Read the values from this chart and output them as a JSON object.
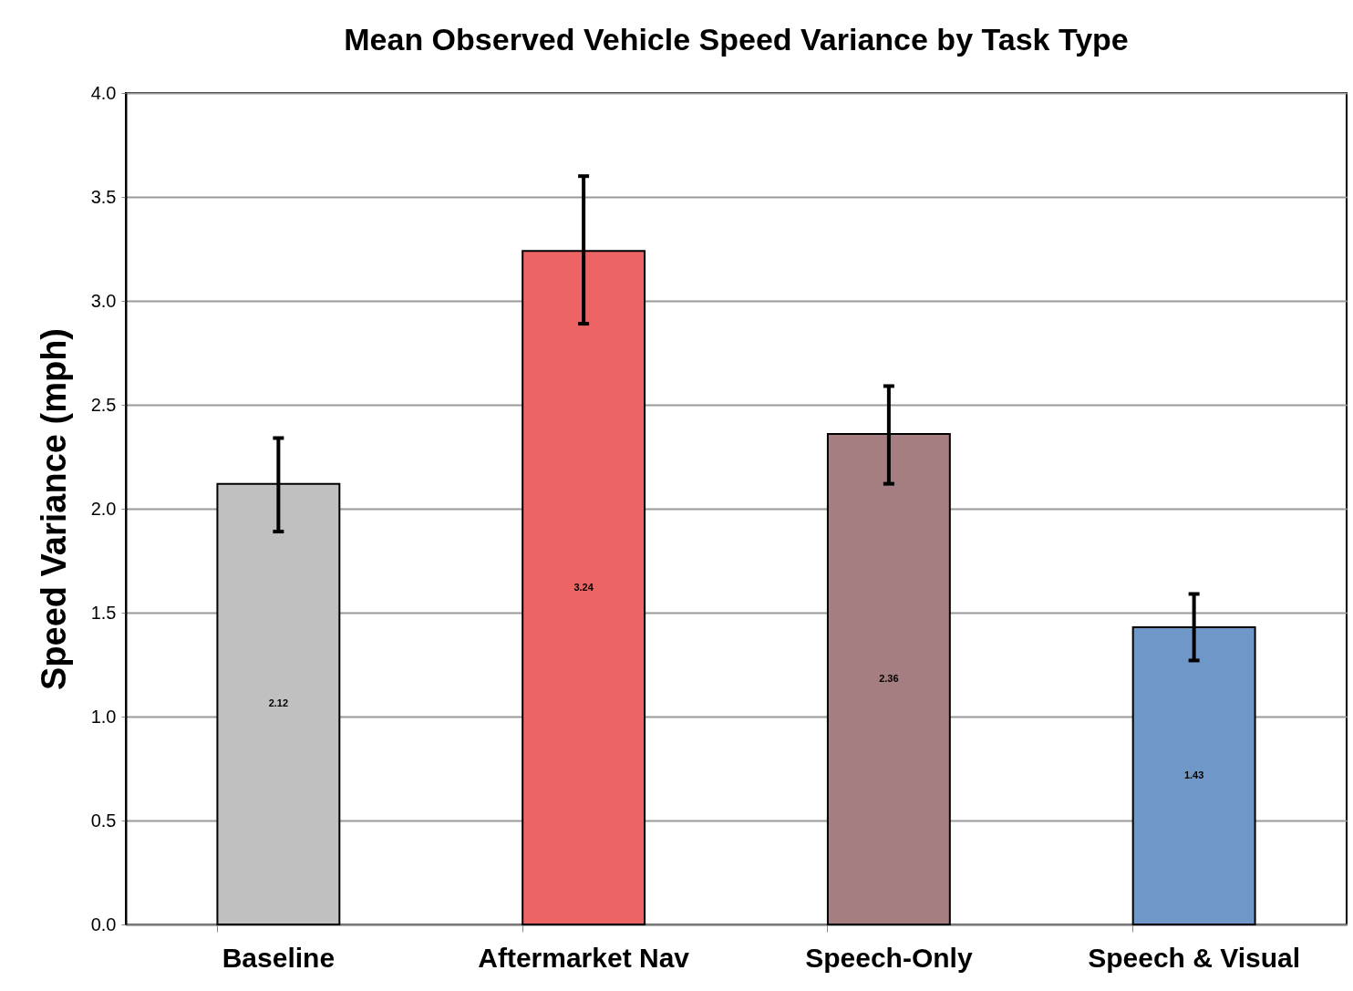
{
  "chart_data": {
    "type": "bar",
    "title": "Mean Observed Vehicle Speed Variance by Task Type",
    "ylabel": "Speed Variance (mph)",
    "categories": [
      "Baseline",
      "Aftermarket Nav",
      "Speech-Only",
      "Speech & Visual"
    ],
    "values": [
      2.12,
      3.24,
      2.36,
      1.43
    ],
    "colors": [
      "#c0c0c0",
      "#ec6464",
      "#a47e80",
      "#6f98c8"
    ],
    "errors": [
      [
        1.89,
        2.34
      ],
      [
        2.89,
        3.6
      ],
      [
        2.12,
        2.59
      ],
      [
        1.27,
        1.59
      ]
    ],
    "data_labels": true,
    "ylim": [
      0,
      4
    ],
    "yticks": [
      {
        "value": 0,
        "label": "0.0"
      },
      {
        "value": 0.5,
        "label": "0.5"
      },
      {
        "value": 1,
        "label": "1.0"
      },
      {
        "value": 1.5,
        "label": "1.5"
      },
      {
        "value": 2,
        "label": "2.0"
      },
      {
        "value": 2.5,
        "label": "2.5"
      },
      {
        "value": 3,
        "label": "3.0"
      },
      {
        "value": 3.5,
        "label": "3.5"
      },
      {
        "value": 4,
        "label": "4.0"
      }
    ],
    "grid": "y"
  }
}
